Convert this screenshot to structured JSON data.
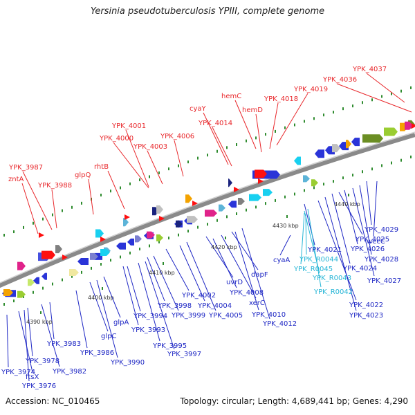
{
  "header": {
    "title": "Yersinia pseudotuberculosis YPIII, complete genome"
  },
  "footer": {
    "accession": "Accession: NC_010465",
    "summary": "Topology: circular; Length: 4,689,441 bp; Genes: 4,290"
  },
  "colors": {
    "top_strand_labels": "#e8272b",
    "bottom_strand_labels": "#1d26c4",
    "rna_labels": "#25b5d6",
    "backbone": "#8a8a8a",
    "tick": "#2e8b2e"
  },
  "ruler_ticks": [
    "4390 kbp",
    "4400 kbp",
    "4410 kbp",
    "4420 kbp",
    "4430 kbp",
    "4440 kbp"
  ],
  "top_genes": [
    "zntA",
    "YPK_3987",
    "YPK_3988",
    "glpQ",
    "rhtB",
    "YPK_4000",
    "YPK_4001",
    "YPK_4003",
    "YPK_4006",
    "cyaY",
    "YPK_4014",
    "hemC",
    "hemD",
    "YPK_4018",
    "YPK_4019",
    "YPK_4036",
    "YPK_4037"
  ],
  "bottom_genes": [
    "YPK_3974",
    "ftsX",
    "YPK_3976",
    "YPK_3978",
    "YPK_3982",
    "YPK_3983",
    "YPK_3986",
    "glpC",
    "YPK_3990",
    "glpA",
    "YPK_3993",
    "YPK_3994",
    "YPK_3995",
    "YPK_3997",
    "YPK_3998",
    "YPK_3999",
    "YPK_4002",
    "YPK_4004",
    "YPK_4005",
    "uvrD",
    "YPK_4008",
    "xerC",
    "dapF",
    "YPK_4010",
    "YPK_4012",
    "cyaA",
    "YPK_4021",
    "YPK_4022",
    "YPK_4023",
    "YPK_4024",
    "YPK_4025",
    "YPK_4026",
    "YPK_4027",
    "YPK_4028",
    "YPK_4029",
    "wecC"
  ],
  "rna_genes": [
    "YPK_R0044",
    "YPK_R0045",
    "YPK_R0043",
    "YPK_R0042"
  ]
}
